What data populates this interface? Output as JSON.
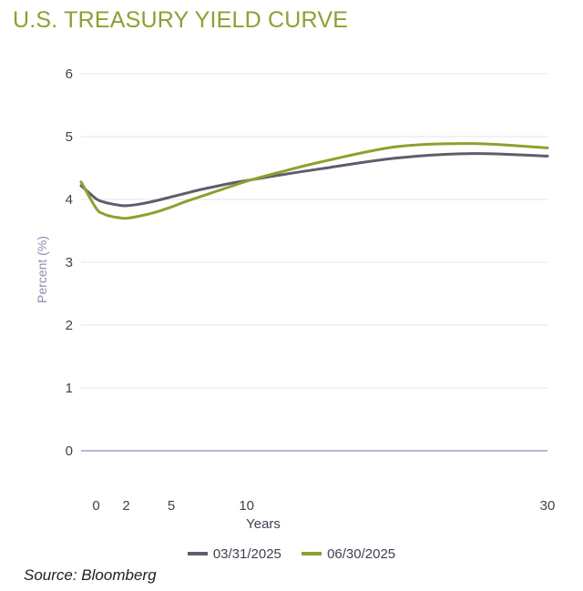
{
  "chart_data": {
    "type": "line",
    "title": "U.S. TREASURY YIELD CURVE",
    "xlabel": "Years",
    "ylabel": "Percent (%)",
    "xlim": [
      -1,
      30
    ],
    "ylim": [
      0,
      6
    ],
    "xticks": [
      0,
      2,
      5,
      10,
      30
    ],
    "yticks": [
      0,
      1,
      2,
      3,
      4,
      5,
      6
    ],
    "grid": true,
    "legend_position": "bottom",
    "series": [
      {
        "name": "03/31/2025",
        "color": "#5b5e6b",
        "x": [
          -1,
          0,
          0.5,
          1,
          1.5,
          2,
          3,
          4,
          5,
          6,
          7,
          8,
          9,
          10,
          12,
          15,
          20,
          25,
          30
        ],
        "y": [
          4.22,
          4.01,
          3.96,
          3.93,
          3.91,
          3.9,
          3.93,
          3.98,
          4.04,
          4.1,
          4.16,
          4.21,
          4.26,
          4.3,
          4.38,
          4.49,
          4.66,
          4.73,
          4.69
        ]
      },
      {
        "name": "06/30/2025",
        "color": "#8ba22c",
        "x": [
          -1,
          0,
          0.5,
          1,
          1.5,
          2,
          3,
          4,
          5,
          6,
          7,
          8,
          9,
          10,
          12,
          15,
          20,
          25,
          30
        ],
        "y": [
          4.28,
          3.86,
          3.77,
          3.73,
          3.71,
          3.7,
          3.74,
          3.8,
          3.88,
          3.97,
          4.05,
          4.13,
          4.21,
          4.29,
          4.42,
          4.6,
          4.84,
          4.89,
          4.82
        ]
      }
    ]
  },
  "source": "Source: Bloomberg"
}
